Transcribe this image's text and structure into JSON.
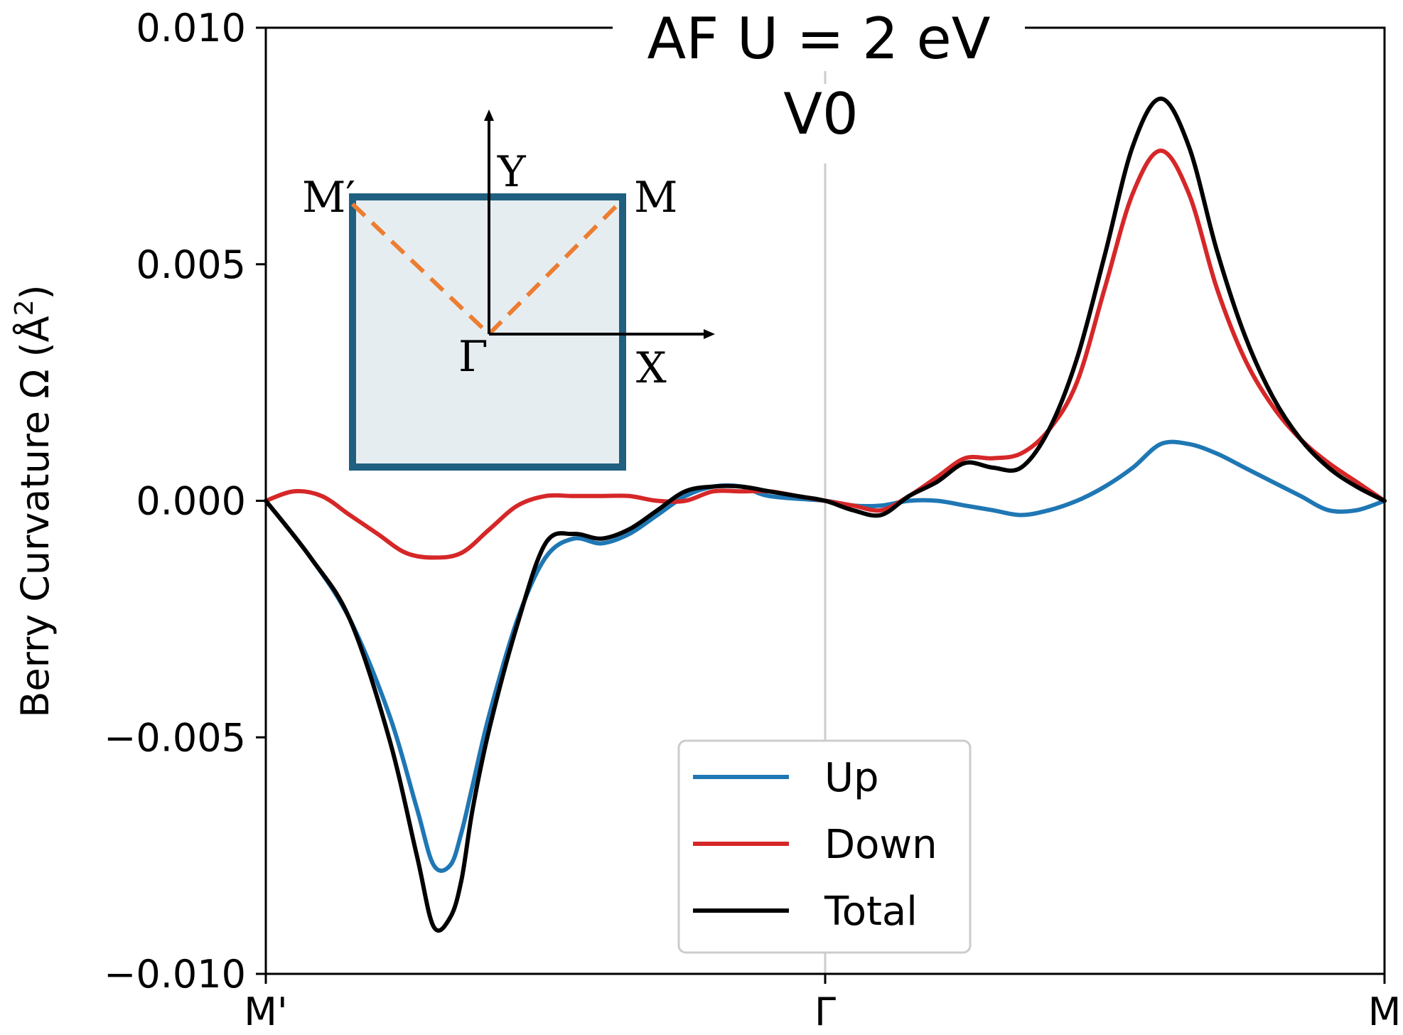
{
  "chart_data": {
    "type": "line",
    "title": "AF U = 2 eV",
    "subtitle": "V0",
    "ylabel": "Berry Curvature Ω (Å²)",
    "ylabel_main": "Berry Curvature Ω (",
    "ylabel_unit": "Å",
    "ylabel_exp": "2",
    "ylabel_close": ")",
    "xlabel": "",
    "xlim": [
      0,
      2
    ],
    "ylim": [
      -0.01,
      0.01
    ],
    "xticks": [
      {
        "value": 0,
        "label": "M'"
      },
      {
        "value": 1,
        "label": "Γ"
      },
      {
        "value": 2,
        "label": "M"
      }
    ],
    "yticks": [
      {
        "value": 0.01,
        "label": "0.010"
      },
      {
        "value": 0.005,
        "label": "0.005"
      },
      {
        "value": 0.0,
        "label": "0.000"
      },
      {
        "value": -0.005,
        "label": "−0.005"
      },
      {
        "value": -0.01,
        "label": "−0.010"
      }
    ],
    "vline_x": 1,
    "legend_position": "lower-center",
    "series": [
      {
        "name": "Up",
        "color": "#1f77b4",
        "x": [
          0,
          0.08,
          0.15,
          0.22,
          0.27,
          0.3,
          0.33,
          0.35,
          0.37,
          0.4,
          0.45,
          0.5,
          0.55,
          0.6,
          0.65,
          0.7,
          0.75,
          0.8,
          0.85,
          0.9,
          1.0,
          1.05,
          1.1,
          1.15,
          1.2,
          1.25,
          1.3,
          1.35,
          1.4,
          1.45,
          1.5,
          1.55,
          1.6,
          1.65,
          1.7,
          1.75,
          1.8,
          1.85,
          1.9,
          1.95,
          2.0
        ],
        "y": [
          0.0,
          -0.0012,
          -0.0025,
          -0.0045,
          -0.0065,
          -0.0077,
          -0.0077,
          -0.007,
          -0.006,
          -0.0045,
          -0.0025,
          -0.0012,
          -0.0008,
          -0.0009,
          -0.0007,
          -0.0003,
          0.0001,
          0.0003,
          0.0003,
          0.0001,
          0.0,
          -0.0001,
          -0.0001,
          0.0,
          0.0,
          -0.0001,
          -0.0002,
          -0.0003,
          -0.0002,
          0.0,
          0.0003,
          0.0007,
          0.0012,
          0.0012,
          0.001,
          0.0007,
          0.0004,
          0.0001,
          -0.0002,
          -0.0002,
          0.0
        ]
      },
      {
        "name": "Down",
        "color": "#d62728",
        "x": [
          0,
          0.05,
          0.1,
          0.15,
          0.2,
          0.25,
          0.3,
          0.35,
          0.4,
          0.45,
          0.5,
          0.55,
          0.6,
          0.65,
          0.7,
          0.75,
          0.8,
          0.85,
          0.9,
          0.95,
          1.0,
          1.05,
          1.1,
          1.15,
          1.2,
          1.25,
          1.3,
          1.35,
          1.4,
          1.45,
          1.5,
          1.55,
          1.6,
          1.65,
          1.7,
          1.75,
          1.8,
          1.85,
          1.9,
          1.95,
          2.0
        ],
        "y": [
          0.0,
          0.0002,
          0.0001,
          -0.0003,
          -0.0007,
          -0.0011,
          -0.0012,
          -0.0011,
          -0.0006,
          -0.0001,
          0.0001,
          0.0001,
          0.0001,
          0.0001,
          0.0,
          0.0,
          0.0002,
          0.0002,
          0.0002,
          0.0001,
          0.0,
          -0.0001,
          -0.0002,
          0.0001,
          0.0005,
          0.0009,
          0.0009,
          0.001,
          0.0015,
          0.0025,
          0.0045,
          0.0065,
          0.0074,
          0.0065,
          0.0045,
          0.003,
          0.002,
          0.0013,
          0.0008,
          0.0004,
          0.0
        ]
      },
      {
        "name": "Total",
        "color": "#000000",
        "x": [
          0,
          0.08,
          0.15,
          0.22,
          0.27,
          0.3,
          0.33,
          0.35,
          0.37,
          0.4,
          0.45,
          0.5,
          0.55,
          0.6,
          0.65,
          0.7,
          0.75,
          0.8,
          0.85,
          0.9,
          0.95,
          1.0,
          1.05,
          1.1,
          1.15,
          1.2,
          1.25,
          1.3,
          1.35,
          1.4,
          1.45,
          1.5,
          1.55,
          1.6,
          1.65,
          1.7,
          1.75,
          1.8,
          1.85,
          1.9,
          1.95,
          2.0
        ],
        "y": [
          0.0,
          -0.0012,
          -0.0025,
          -0.005,
          -0.0075,
          -0.009,
          -0.0088,
          -0.008,
          -0.0065,
          -0.0048,
          -0.0026,
          -0.0009,
          -0.0007,
          -0.0008,
          -0.0006,
          -0.0002,
          0.0002,
          0.0003,
          0.0003,
          0.0002,
          0.0001,
          0.0,
          -0.0002,
          -0.0003,
          0.0001,
          0.0004,
          0.0008,
          0.0007,
          0.0007,
          0.0015,
          0.003,
          0.0052,
          0.0075,
          0.0085,
          0.0075,
          0.0053,
          0.0035,
          0.0022,
          0.0013,
          0.0007,
          0.0003,
          0.0
        ]
      }
    ],
    "inset": {
      "labels": {
        "m_prime": "M′",
        "m": "M",
        "gamma": "Γ",
        "x": "X",
        "y": "Y"
      },
      "colors": {
        "frame": "#1f5f80",
        "fill": "#e6edf1",
        "path": "#ed7d31"
      }
    }
  }
}
